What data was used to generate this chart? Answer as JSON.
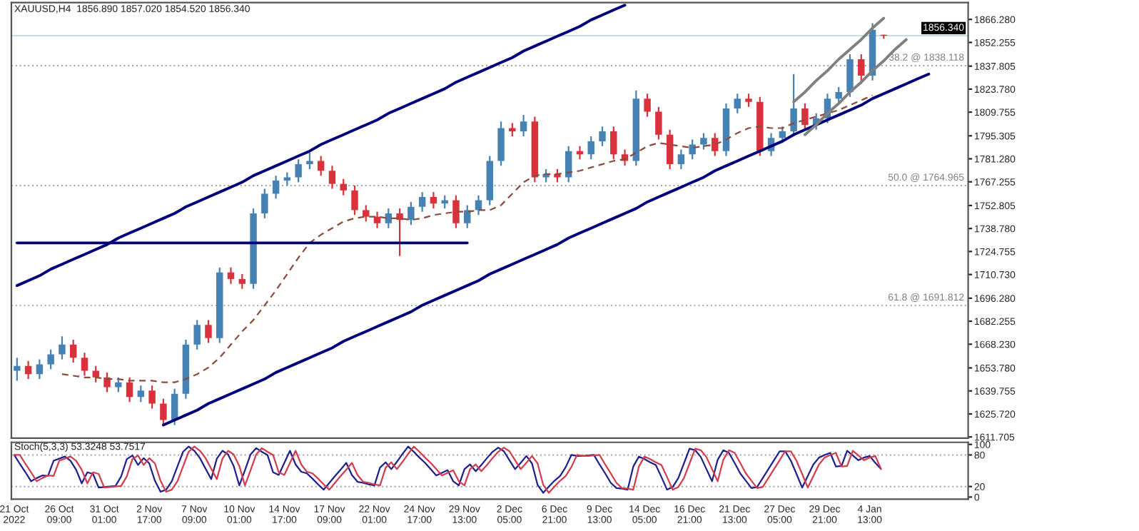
{
  "chart_data": [
    {
      "type": "candlestick",
      "title": "XAUUSD,H4  1856.890 1857.020 1854.520 1856.340",
      "categories": [
        null,
        null,
        null,
        null,
        null,
        null,
        null,
        null,
        null,
        null,
        null,
        null,
        null,
        null,
        null,
        null,
        null,
        null,
        null,
        null,
        null,
        null,
        null,
        null,
        null,
        null,
        null,
        null,
        null,
        null,
        null,
        null,
        null,
        null,
        null,
        null,
        null,
        null,
        null,
        null,
        null,
        null,
        null,
        null,
        null,
        null,
        null,
        null,
        null,
        null,
        null,
        null,
        null,
        null,
        null,
        null,
        null,
        null,
        null,
        null,
        null,
        null,
        null,
        null,
        null,
        null,
        null,
        null,
        null,
        null,
        null,
        null,
        null,
        null,
        null,
        null,
        null,
        null,
        null,
        null,
        null,
        null,
        null,
        null,
        null
      ],
      "ohlc": [
        [
          1652,
          1660,
          1646,
          1655
        ],
        [
          1655,
          1658,
          1647,
          1650
        ],
        [
          1650,
          1659,
          1647,
          1656
        ],
        [
          1656,
          1665,
          1653,
          1662
        ],
        [
          1662,
          1673,
          1659,
          1668
        ],
        [
          1668,
          1671,
          1657,
          1660
        ],
        [
          1660,
          1663,
          1649,
          1652
        ],
        [
          1652,
          1655,
          1645,
          1648
        ],
        [
          1648,
          1651,
          1639,
          1642
        ],
        [
          1642,
          1648,
          1639,
          1645
        ],
        [
          1645,
          1648,
          1633,
          1636
        ],
        [
          1636,
          1643,
          1633,
          1640
        ],
        [
          1640,
          1643,
          1629,
          1632
        ],
        [
          1632,
          1635,
          1619,
          1622
        ],
        [
          1622,
          1641,
          1619,
          1638
        ],
        [
          1638,
          1671,
          1635,
          1668
        ],
        [
          1668,
          1683,
          1665,
          1680
        ],
        [
          1680,
          1683,
          1669,
          1672
        ],
        [
          1672,
          1715,
          1669,
          1712
        ],
        [
          1712,
          1715,
          1705,
          1708
        ],
        [
          1708,
          1711,
          1702,
          1705
        ],
        [
          1705,
          1751,
          1702,
          1748
        ],
        [
          1748,
          1763,
          1745,
          1760
        ],
        [
          1760,
          1771,
          1757,
          1768
        ],
        [
          1768,
          1773,
          1765,
          1770
        ],
        [
          1770,
          1781,
          1767,
          1778
        ],
        [
          1778,
          1785,
          1775,
          1780
        ],
        [
          1780,
          1783,
          1771,
          1774
        ],
        [
          1774,
          1777,
          1763,
          1766
        ],
        [
          1766,
          1769,
          1759,
          1762
        ],
        [
          1762,
          1765,
          1747,
          1750
        ],
        [
          1750,
          1753,
          1743,
          1746
        ],
        [
          1746,
          1749,
          1739,
          1742
        ],
        [
          1742,
          1751,
          1739,
          1748
        ],
        [
          1748,
          1751,
          1722,
          1744
        ],
        [
          1744,
          1755,
          1741,
          1752
        ],
        [
          1752,
          1761,
          1749,
          1758
        ],
        [
          1758,
          1761,
          1751,
          1754
        ],
        [
          1754,
          1759,
          1751,
          1756
        ],
        [
          1756,
          1759,
          1739,
          1742
        ],
        [
          1742,
          1753,
          1739,
          1750
        ],
        [
          1750,
          1759,
          1747,
          1756
        ],
        [
          1756,
          1783,
          1753,
          1780
        ],
        [
          1780,
          1804,
          1777,
          1800
        ],
        [
          1800,
          1803,
          1795,
          1798
        ],
        [
          1798,
          1808,
          1795,
          1804
        ],
        [
          1804,
          1807,
          1767,
          1770
        ],
        [
          1770,
          1775,
          1767,
          1772
        ],
        [
          1772,
          1775,
          1767,
          1770
        ],
        [
          1770,
          1789,
          1767,
          1786
        ],
        [
          1786,
          1789,
          1781,
          1784
        ],
        [
          1784,
          1795,
          1781,
          1792
        ],
        [
          1792,
          1801,
          1789,
          1798
        ],
        [
          1798,
          1801,
          1781,
          1784
        ],
        [
          1784,
          1787,
          1777,
          1780
        ],
        [
          1780,
          1823,
          1777,
          1818
        ],
        [
          1818,
          1821,
          1807,
          1810
        ],
        [
          1810,
          1813,
          1793,
          1796
        ],
        [
          1796,
          1799,
          1775,
          1778
        ],
        [
          1778,
          1787,
          1775,
          1784
        ],
        [
          1784,
          1793,
          1781,
          1790
        ],
        [
          1790,
          1797,
          1787,
          1794
        ],
        [
          1794,
          1797,
          1783,
          1786
        ],
        [
          1786,
          1815,
          1783,
          1812
        ],
        [
          1812,
          1821,
          1809,
          1818
        ],
        [
          1818,
          1821,
          1813,
          1816
        ],
        [
          1816,
          1819,
          1783,
          1786
        ],
        [
          1786,
          1797,
          1783,
          1794
        ],
        [
          1794,
          1801,
          1791,
          1798
        ],
        [
          1798,
          1833,
          1795,
          1812
        ],
        [
          1812,
          1815,
          1799,
          1802
        ],
        [
          1802,
          1809,
          1799,
          1806
        ],
        [
          1806,
          1821,
          1803,
          1818
        ],
        [
          1818,
          1825,
          1815,
          1822
        ],
        [
          1822,
          1845,
          1819,
          1842
        ],
        [
          1842,
          1845,
          1827,
          1832
        ],
        [
          1832,
          1864,
          1829,
          1860
        ],
        [
          1856.89,
          1857.02,
          1854.52,
          1856.34
        ],
        null,
        null,
        null,
        null,
        null,
        null,
        null
      ],
      "colors": [
        "#4682b4",
        "#d9323c",
        "#4682b4",
        "#4682b4",
        "#4682b4",
        "#d9323c",
        "#d9323c",
        "#d9323c",
        "#d9323c",
        "#4682b4",
        "#d9323c",
        "#4682b4",
        "#d9323c",
        "#d9323c",
        "#4682b4",
        "#4682b4",
        "#4682b4",
        "#d9323c",
        "#4682b4",
        "#d9323c",
        "#d9323c",
        "#4682b4",
        "#4682b4",
        "#4682b4",
        "#4682b4",
        "#4682b4",
        "#4682b4",
        "#d9323c",
        "#d9323c",
        "#d9323c",
        "#d9323c",
        "#d9323c",
        "#d9323c",
        "#4682b4",
        "#d9323c",
        "#4682b4",
        "#4682b4",
        "#d9323c",
        "#4682b4",
        "#d9323c",
        "#4682b4",
        "#4682b4",
        "#4682b4",
        "#4682b4",
        "#d9323c",
        "#4682b4",
        "#d9323c",
        "#4682b4",
        "#d9323c",
        "#4682b4",
        "#d9323c",
        "#4682b4",
        "#4682b4",
        "#d9323c",
        "#d9323c",
        "#4682b4",
        "#d9323c",
        "#d9323c",
        "#d9323c",
        "#4682b4",
        "#4682b4",
        "#4682b4",
        "#d9323c",
        "#4682b4",
        "#4682b4",
        "#d9323c",
        "#d9323c",
        "#4682b4",
        "#4682b4",
        "#4682b4",
        "#d9323c",
        "#4682b4",
        "#4682b4",
        "#4682b4",
        "#4682b4",
        "#d9323c",
        "#4682b4",
        "#d9323c",
        null,
        null,
        null,
        null,
        null,
        null,
        null
      ],
      "series": [
        {
          "type": "line",
          "color": "#8b4a3c",
          "line_style": "dashed",
          "values": [
            null,
            null,
            null,
            null,
            1650,
            1649,
            1648,
            1648,
            1647,
            1647,
            1646,
            1646,
            1646,
            1645,
            1645,
            1647,
            1650,
            1654,
            1660,
            1668,
            1676,
            1683,
            1692,
            1701,
            1711,
            1721,
            1730,
            1735,
            1739,
            1743,
            1745,
            1746,
            1746,
            1745,
            1745,
            1744,
            1745,
            1747,
            1748,
            1749,
            1749,
            1750,
            1750,
            1753,
            1760,
            1767,
            1771,
            1772,
            1772,
            1773,
            1774,
            1776,
            1778,
            1780,
            1781,
            1785,
            1789,
            1791,
            1790,
            1789,
            1788,
            1789,
            1790,
            1793,
            1797,
            1800,
            1801,
            1800,
            1800,
            1803,
            1805,
            1807,
            1809,
            1811,
            1814,
            1817,
            1820,
            null,
            null,
            null,
            null,
            null,
            null,
            null,
            null
          ]
        },
        {
          "type": "line",
          "color": "#00007a",
          "line_style": "solid",
          "values": [
            1704,
            1707,
            1710,
            1714,
            1717,
            1720,
            1723,
            1726,
            1729,
            1733,
            1736,
            1739,
            1742,
            1745,
            1748,
            1752,
            1755,
            1758,
            1761,
            1764,
            1767,
            1771,
            1774,
            1777,
            1780,
            1783,
            1786,
            1790,
            1793,
            1796,
            1799,
            1802,
            1805,
            1809,
            1812,
            1815,
            1818,
            1821,
            1824,
            1828,
            1831,
            1834,
            1837,
            1840,
            1843,
            1847,
            1850,
            1853,
            1856,
            1859,
            1862,
            1866,
            1869,
            1872,
            1875,
            null,
            null,
            null,
            null,
            null,
            null,
            null,
            null,
            null,
            null,
            null,
            null,
            null,
            null,
            null,
            null,
            null,
            null,
            null,
            null,
            null,
            null,
            null,
            null,
            null,
            null,
            null,
            null,
            null,
            null
          ]
        },
        {
          "type": "line",
          "color": "#00007a",
          "line_style": "solid",
          "values": [
            null,
            null,
            null,
            null,
            null,
            null,
            null,
            null,
            null,
            null,
            null,
            null,
            null,
            1619,
            1622,
            1625,
            1628,
            1632,
            1635,
            1638,
            1641,
            1644,
            1647,
            1651,
            1654,
            1657,
            1660,
            1663,
            1666,
            1670,
            1673,
            1676,
            1679,
            1682,
            1685,
            1688,
            1692,
            1695,
            1698,
            1701,
            1704,
            1707,
            1711,
            1714,
            1717,
            1720,
            1723,
            1726,
            1729,
            1733,
            1736,
            1739,
            1742,
            1745,
            1748,
            1751,
            1755,
            1758,
            1761,
            1764,
            1767,
            1770,
            1774,
            1777,
            1780,
            1783,
            1786,
            1789,
            1792,
            1796,
            1799,
            1802,
            1805,
            1808,
            1811,
            1814,
            1818,
            1821,
            1824,
            1827,
            1830,
            1833,
            null,
            null,
            null
          ]
        },
        {
          "type": "line",
          "color": "#00007a",
          "line_style": "solid",
          "values": [
            1730,
            1730,
            1730,
            1730,
            1730,
            1730,
            1730,
            1730,
            1730,
            1730,
            1730,
            1730,
            1730,
            1730,
            1730,
            1730,
            1730,
            1730,
            1730,
            1730,
            1730,
            1730,
            1730,
            1730,
            1730,
            1730,
            1730,
            1730,
            1730,
            1730,
            1730,
            1730,
            1730,
            1730,
            1730,
            1730,
            1730,
            1730,
            1730,
            1730,
            1730,
            null,
            null,
            null,
            null,
            null,
            null,
            null,
            null,
            null,
            null,
            null,
            null,
            null,
            null,
            null,
            null,
            null,
            null,
            null,
            null,
            null,
            null,
            null,
            null,
            null,
            null,
            null,
            null,
            null,
            null,
            null,
            null,
            null,
            null,
            null,
            null,
            null,
            null,
            null,
            null,
            null,
            null,
            null,
            null
          ]
        },
        {
          "type": "line",
          "color": "#808080",
          "line_style": "solid",
          "values": [
            null,
            null,
            null,
            null,
            null,
            null,
            null,
            null,
            null,
            null,
            null,
            null,
            null,
            null,
            null,
            null,
            null,
            null,
            null,
            null,
            null,
            null,
            null,
            null,
            null,
            null,
            null,
            null,
            null,
            null,
            null,
            null,
            null,
            null,
            null,
            null,
            null,
            null,
            null,
            null,
            null,
            null,
            null,
            null,
            null,
            null,
            null,
            null,
            null,
            null,
            null,
            null,
            null,
            null,
            null,
            null,
            null,
            null,
            null,
            null,
            null,
            null,
            null,
            null,
            null,
            null,
            null,
            null,
            null,
            1816,
            1822,
            1829,
            1835,
            1842,
            1848,
            1854,
            1861,
            1867,
            null,
            null,
            null,
            null,
            null,
            null,
            null
          ]
        },
        {
          "type": "line",
          "color": "#808080",
          "line_style": "solid",
          "values": [
            null,
            null,
            null,
            null,
            null,
            null,
            null,
            null,
            null,
            null,
            null,
            null,
            null,
            null,
            null,
            null,
            null,
            null,
            null,
            null,
            null,
            null,
            null,
            null,
            null,
            null,
            null,
            null,
            null,
            null,
            null,
            null,
            null,
            null,
            null,
            null,
            null,
            null,
            null,
            null,
            null,
            null,
            null,
            null,
            null,
            null,
            null,
            null,
            null,
            null,
            null,
            null,
            null,
            null,
            null,
            null,
            null,
            null,
            null,
            null,
            null,
            null,
            null,
            null,
            null,
            null,
            null,
            null,
            null,
            null,
            1796,
            1802,
            1809,
            1815,
            1822,
            1828,
            1835,
            1841,
            1848,
            1854,
            null,
            null,
            null,
            null,
            null
          ]
        }
      ],
      "ref_lines": [
        {
          "axis": "y",
          "value": 1856.34,
          "label": "1856.340",
          "color": "#c8dce6",
          "line_style": "solid"
        },
        {
          "axis": "y",
          "value": 1838.118,
          "label": "38.2 @ 1838.118",
          "color": "#a0a0a0",
          "line_style": "dotted"
        },
        {
          "axis": "y",
          "value": 1764.965,
          "label": "50.0 @ 1764.965",
          "color": "#a0a0a0",
          "line_style": "dotted"
        },
        {
          "axis": "y",
          "value": 1691.812,
          "label": "61.8 @ 1691.812",
          "color": "#a0a0a0",
          "line_style": "dotted"
        }
      ],
      "ylim": [
        1611,
        1876.5
      ],
      "yticks": [
        {
          "value": 1611.705,
          "label": "1611.705"
        },
        {
          "value": 1625.72,
          "label": "1625.720"
        },
        {
          "value": 1639.755,
          "label": "1639.755"
        },
        {
          "value": 1653.78,
          "label": "1653.780"
        },
        {
          "value": 1668.23,
          "label": "1668.230"
        },
        {
          "value": 1682.255,
          "label": "1682.255"
        },
        {
          "value": 1696.28,
          "label": "1696.280"
        },
        {
          "value": 1710.73,
          "label": "1710.730"
        },
        {
          "value": 1724.755,
          "label": "1724.755"
        },
        {
          "value": 1738.78,
          "label": "1738.780"
        },
        {
          "value": 1752.805,
          "label": "1752.805"
        },
        {
          "value": 1767.255,
          "label": "1767.255"
        },
        {
          "value": 1781.28,
          "label": "1781.280"
        },
        {
          "value": 1795.305,
          "label": "1795.305"
        },
        {
          "value": 1809.755,
          "label": "1809.755"
        },
        {
          "value": 1823.78,
          "label": "1823.780"
        },
        {
          "value": 1837.805,
          "label": "1837.805"
        },
        {
          "value": 1852.255,
          "label": "1852.255"
        },
        {
          "value": 1866.28,
          "label": "1866.280"
        }
      ],
      "tick_labels": "y"
    },
    {
      "type": "line",
      "title": "Stoch(5,3,3) 53.3248 53.7517",
      "categories": [
        "21 Oct 2022",
        null,
        null,
        null,
        null,
        null,
        null,
        null,
        "26 Oct 09:00",
        null,
        null,
        null,
        null,
        null,
        null,
        null,
        "31 Oct 01:00",
        null,
        null,
        null,
        null,
        null,
        null,
        null,
        "2 Nov 17:00",
        null,
        null,
        null,
        null,
        null,
        null,
        null,
        "7 Nov 09:00",
        null,
        null,
        null,
        null,
        null,
        null,
        null,
        "10 Nov 01:00",
        null,
        null,
        null,
        null,
        null,
        null,
        null,
        "14 Nov 17:00",
        null,
        null,
        null,
        null,
        null,
        null,
        null,
        "17 Nov 09:00",
        null,
        null,
        null,
        null,
        null,
        null,
        null,
        "22 Nov 01:00",
        null,
        null,
        null,
        null,
        null,
        null,
        null,
        "24 Nov 17:00",
        null,
        null,
        null,
        null,
        null,
        null,
        null,
        "29 Nov 13:00",
        null,
        null,
        null,
        null,
        null,
        null,
        null,
        "2 Dec 05:00",
        null,
        null,
        null,
        null,
        null,
        null,
        null,
        "6 Dec 21:00",
        null,
        null,
        null,
        null,
        null,
        null,
        null,
        "9 Dec 13:00",
        null,
        null,
        null,
        null,
        null,
        null,
        null,
        "14 Dec 05:00",
        null,
        null,
        null,
        null,
        null,
        null,
        null,
        "16 Dec 21:00",
        null,
        null,
        null,
        null,
        null,
        null,
        null,
        "21 Dec 13:00",
        null,
        null,
        null,
        null,
        null,
        null,
        null,
        "27 Dec 05:00",
        null,
        null,
        null,
        null,
        null,
        null,
        null,
        "29 Dec 21:00",
        null,
        null,
        null,
        null,
        null,
        null,
        null,
        "4 Jan 13:00",
        null,
        null,
        null,
        null,
        null,
        null,
        null,
        null,
        null,
        null,
        null,
        null,
        null,
        null,
        null,
        null,
        null
      ],
      "series": [
        {
          "color": "#1e1e8c",
          "values": [
            80,
            63,
            47,
            30,
            36,
            41,
            40,
            69,
            73,
            77,
            69,
            52,
            26,
            47,
            44,
            18,
            19,
            20,
            21,
            39,
            72,
            79,
            61,
            74,
            64,
            31,
            10,
            14,
            30,
            58,
            86,
            96,
            88,
            74,
            54,
            34,
            73,
            88,
            81,
            59,
            22,
            51,
            81,
            93,
            86,
            80,
            47,
            42,
            65,
            88,
            62,
            48,
            45,
            35,
            24,
            14,
            27,
            40,
            52,
            65,
            42,
            29,
            27,
            24,
            22,
            56,
            66,
            53,
            67,
            82,
            96,
            86,
            75,
            65,
            53,
            41,
            46,
            51,
            30,
            22,
            53,
            62,
            49,
            61,
            74,
            86,
            94,
            87,
            70,
            53,
            65,
            78,
            64,
            23,
            8,
            20,
            31,
            40,
            57,
            80,
            78,
            78,
            79,
            80,
            62,
            45,
            27,
            17,
            16,
            14,
            58,
            77,
            72,
            66,
            61,
            38,
            14,
            19,
            36,
            64,
            92,
            89,
            76,
            53,
            30,
            71,
            89,
            84,
            65,
            45,
            31,
            17,
            19,
            36,
            53,
            70,
            87,
            87,
            69,
            44,
            18,
            40,
            62,
            75,
            80,
            84,
            58,
            59,
            88,
            79,
            70,
            75,
            78,
            65,
            53.3248,
            null,
            null,
            null,
            null,
            null,
            null,
            null,
            null,
            null,
            null,
            null,
            null,
            null,
            null,
            null
          ]
        },
        {
          "color": "#d23c50",
          "values": [
            80,
            80,
            63,
            47,
            30,
            36,
            41,
            40,
            69,
            73,
            77,
            69,
            52,
            26,
            47,
            44,
            18,
            19,
            20,
            21,
            39,
            72,
            79,
            61,
            74,
            64,
            31,
            10,
            14,
            30,
            58,
            86,
            96,
            88,
            74,
            54,
            34,
            73,
            88,
            81,
            59,
            22,
            51,
            81,
            93,
            86,
            80,
            47,
            42,
            65,
            88,
            62,
            48,
            45,
            35,
            24,
            14,
            27,
            40,
            52,
            65,
            42,
            29,
            27,
            24,
            22,
            56,
            66,
            53,
            67,
            82,
            96,
            86,
            75,
            65,
            53,
            41,
            46,
            51,
            30,
            22,
            53,
            62,
            49,
            61,
            74,
            86,
            94,
            87,
            70,
            53,
            65,
            78,
            64,
            23,
            8,
            20,
            31,
            40,
            57,
            80,
            78,
            78,
            79,
            80,
            62,
            45,
            27,
            17,
            16,
            14,
            58,
            77,
            72,
            66,
            61,
            38,
            14,
            19,
            36,
            64,
            92,
            89,
            76,
            53,
            30,
            71,
            89,
            84,
            65,
            45,
            31,
            17,
            19,
            36,
            53,
            70,
            87,
            87,
            69,
            44,
            18,
            40,
            62,
            75,
            80,
            84,
            58,
            59,
            88,
            79,
            70,
            75,
            78,
            53.7517,
            null,
            null,
            null,
            null,
            null,
            null,
            null,
            null,
            null,
            null,
            null,
            null,
            null,
            null,
            null
          ]
        }
      ],
      "ref_lines": [
        {
          "axis": "y",
          "value": 80,
          "color": "#a0a0a0",
          "line_style": "dotted"
        },
        {
          "axis": "y",
          "value": 20,
          "color": "#a0a0a0",
          "line_style": "dotted"
        }
      ],
      "ylim": [
        -4,
        104
      ],
      "yticks": [
        0,
        20,
        80,
        100
      ]
    }
  ]
}
